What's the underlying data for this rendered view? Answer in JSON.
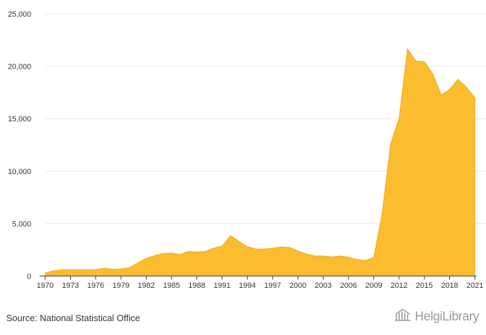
{
  "chart_data": {
    "type": "area",
    "x": [
      1970,
      1971,
      1972,
      1973,
      1974,
      1975,
      1976,
      1977,
      1978,
      1979,
      1980,
      1981,
      1982,
      1983,
      1984,
      1985,
      1986,
      1987,
      1988,
      1989,
      1990,
      1991,
      1992,
      1993,
      1994,
      1995,
      1996,
      1997,
      1998,
      1999,
      2000,
      2001,
      2002,
      2003,
      2004,
      2005,
      2006,
      2007,
      2008,
      2009,
      2010,
      2011,
      2012,
      2013,
      2014,
      2015,
      2016,
      2017,
      2018,
      2019,
      2020,
      2021
    ],
    "values": [
      300,
      500,
      600,
      620,
      600,
      600,
      620,
      750,
      650,
      680,
      800,
      1250,
      1700,
      1950,
      2150,
      2200,
      2050,
      2350,
      2300,
      2350,
      2650,
      2850,
      3850,
      3300,
      2800,
      2580,
      2580,
      2650,
      2780,
      2730,
      2400,
      2100,
      1920,
      1920,
      1820,
      1920,
      1800,
      1580,
      1480,
      1780,
      6000,
      12600,
      15000,
      21650,
      20500,
      20450,
      19300,
      17250,
      17800,
      18750,
      18000,
      17000
    ],
    "xticks": [
      "1970",
      "1973",
      "1976",
      "1979",
      "1982",
      "1985",
      "1988",
      "1991",
      "1994",
      "1997",
      "2000",
      "2003",
      "2006",
      "2009",
      "2012",
      "2015",
      "2018",
      "2021"
    ],
    "yticks": [
      "0",
      "5,000",
      "10,000",
      "15,000",
      "20,000",
      "25,000"
    ],
    "ylim": [
      0,
      25000
    ],
    "xlim": [
      1970,
      2021
    ],
    "grid": true,
    "color": "#f9bd2f",
    "source": "Source: National Statistical Office"
  },
  "brand": {
    "name": "HelgiLibrary",
    "icon": "library-building-icon"
  }
}
